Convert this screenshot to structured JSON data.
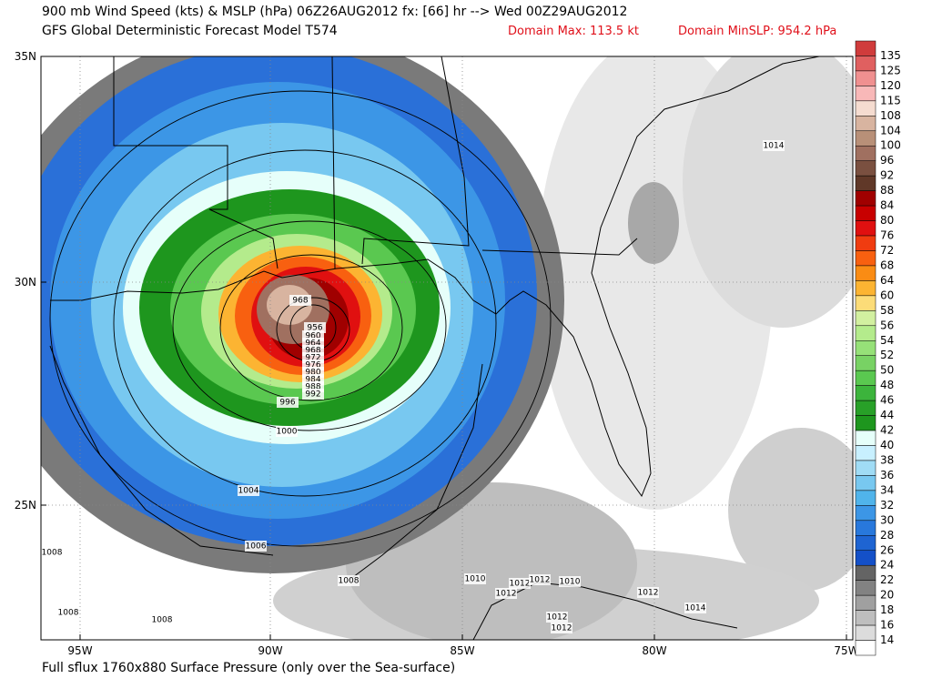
{
  "header": {
    "line1": "900 mb Wind Speed (kts) & MSLP (hPa) 06Z26AUG2012 fx: [66] hr --> Wed 00Z29AUG2012",
    "line2": "GFS Global Deterministic Forecast Model T574",
    "domain_max": "Domain Max: 113.5 kt",
    "domain_min": "Domain MinSLP: 954.2 hPa"
  },
  "map": {
    "lat_labels": [
      "35N",
      "30N",
      "25N"
    ],
    "lon_labels": [
      "95W",
      "90W",
      "85W",
      "80W",
      "75W"
    ],
    "contour_labels": [
      "968",
      "956",
      "960",
      "964",
      "968",
      "972",
      "976",
      "980",
      "984",
      "988",
      "992",
      "996",
      "1000",
      "1004",
      "1006",
      "1008",
      "1008",
      "1008",
      "1008",
      "1010",
      "1012",
      "1012",
      "1012",
      "1010",
      "1012",
      "1014",
      "1014",
      "1012",
      "1012"
    ]
  },
  "colorbar": {
    "labels": [
      "135",
      "125",
      "120",
      "115",
      "108",
      "104",
      "100",
      "96",
      "92",
      "88",
      "84",
      "80",
      "76",
      "72",
      "68",
      "64",
      "60",
      "58",
      "56",
      "54",
      "52",
      "50",
      "48",
      "46",
      "44",
      "42",
      "40",
      "38",
      "36",
      "34",
      "32",
      "30",
      "28",
      "26",
      "24",
      "22",
      "20",
      "18",
      "16",
      "14"
    ],
    "colors": [
      "#d03c3c",
      "#e06060",
      "#f09090",
      "#f8b8b8",
      "#f5dcd0",
      "#d8b4a0",
      "#b89078",
      "#a07060",
      "#7a5040",
      "#603828",
      "#a00000",
      "#c80000",
      "#e01010",
      "#f03c10",
      "#f86010",
      "#fa8c14",
      "#fcb432",
      "#fcdc78",
      "#d2f0a0",
      "#b4eb8c",
      "#96e178",
      "#78d264",
      "#5ac850",
      "#3cb43c",
      "#28a028",
      "#1e961e",
      "#e6fffa",
      "#c8f0ff",
      "#a0dcf5",
      "#78c8f0",
      "#50b4eb",
      "#3c96e6",
      "#2878dc",
      "#1e64d2",
      "#1450c8",
      "#646464",
      "#828282",
      "#a0a0a0",
      "#bebebe",
      "#dcdcdc",
      "#ffffff"
    ]
  },
  "footer": "Full sflux 1760x880 Surface Pressure (only over the Sea-surface)"
}
